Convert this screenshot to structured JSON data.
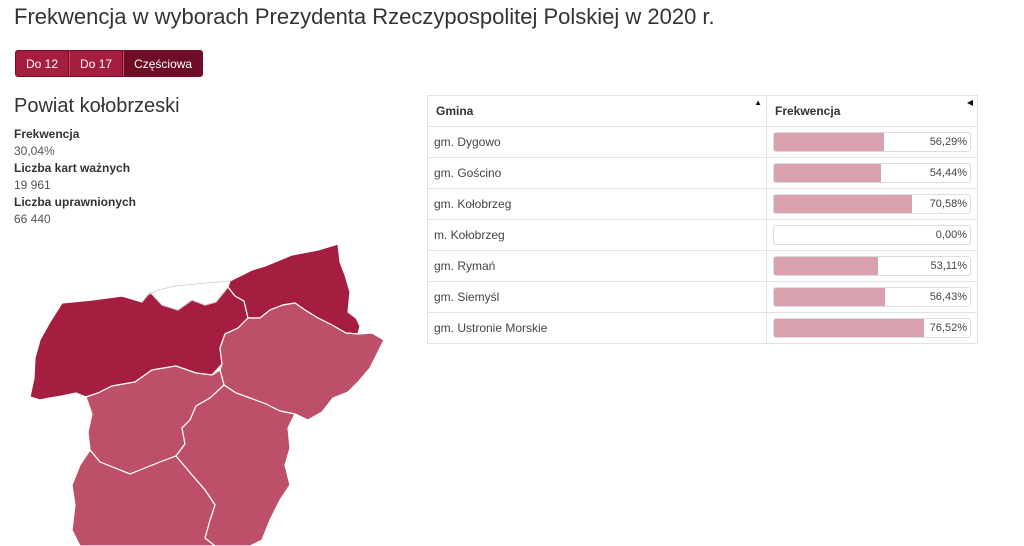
{
  "title": "Frekwencja w wyborach Prezydenta Rzeczypospolitej Polskiej w 2020 r.",
  "buttons": [
    {
      "label": "Do 12",
      "active": false
    },
    {
      "label": "Do 17",
      "active": false
    },
    {
      "label": "Częściowa",
      "active": true
    }
  ],
  "region": {
    "name": "Powiat kołobrzeski",
    "stats": [
      {
        "label": "Frekwencja",
        "value": "30,04%"
      },
      {
        "label": "Liczba kart ważnych",
        "value": "19 961"
      },
      {
        "label": "Liczba uprawnionych",
        "value": "66 440"
      }
    ]
  },
  "table": {
    "headers": {
      "gmina": "Gmina",
      "frekwencja": "Frekwencja"
    },
    "sort_icons": {
      "gmina": "triangle-up",
      "frekwencja": "triangle-left"
    },
    "rows": [
      {
        "gmina": "gm. Dygowo",
        "frekwencja": "56,29%",
        "value": 56.29
      },
      {
        "gmina": "gm. Gościno",
        "frekwencja": "54,44%",
        "value": 54.44
      },
      {
        "gmina": "gm. Kołobrzeg",
        "frekwencja": "70,58%",
        "value": 70.58
      },
      {
        "gmina": "m. Kołobrzeg",
        "frekwencja": "0,00%",
        "value": 0
      },
      {
        "gmina": "gm. Rymań",
        "frekwencja": "53,11%",
        "value": 53.11
      },
      {
        "gmina": "gm. Siemyśl",
        "frekwencja": "56,43%",
        "value": 56.43
      },
      {
        "gmina": "gm. Ustronie Morskie",
        "frekwencja": "76,52%",
        "value": 76.52
      }
    ]
  },
  "colors": {
    "button": "#a51d3f",
    "button_active": "#6d0d26",
    "bar_fill": "#d9a0ae",
    "map_dark": "#a51d3f",
    "map_light": "#bd5068"
  }
}
